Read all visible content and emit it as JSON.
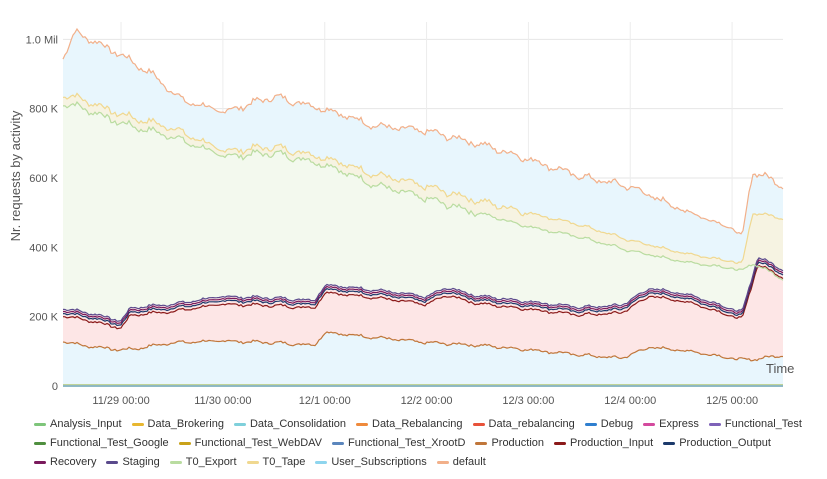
{
  "chart_data": {
    "type": "area",
    "ylabel": "Nr. requests by activity",
    "xlabel": "Time",
    "x_ticks": [
      "11/29 00:00",
      "11/30 00:00",
      "12/1 00:00",
      "12/2 00:00",
      "12/3 00:00",
      "12/4 00:00",
      "12/5 00:00"
    ],
    "y_ticks": [
      "0",
      "200 K",
      "400 K",
      "600 K",
      "800 K",
      "1.0 Mil"
    ],
    "ylim": [
      0,
      1050000
    ],
    "xlim_days": [
      -0.57,
      6.5
    ],
    "grid": true,
    "legend_position": "bottom",
    "series": [
      {
        "name": "Analysis_Input",
        "color": "#7ec57a",
        "points": [
          [
            -0.57,
            3000
          ],
          [
            6.5,
            3000
          ]
        ]
      },
      {
        "name": "Data_Brokering",
        "color": "#e8b730",
        "points": [
          [
            -0.57,
            2000
          ],
          [
            6.5,
            2000
          ]
        ]
      },
      {
        "name": "Data_Consolidation",
        "color": "#7fd0db",
        "points": [
          [
            -0.57,
            0
          ],
          [
            6.5,
            0
          ]
        ]
      },
      {
        "name": "Data_Rebalancing",
        "color": "#ef8a3c",
        "points": [
          [
            -0.57,
            0
          ],
          [
            6.5,
            0
          ]
        ]
      },
      {
        "name": "Data_rebalancing",
        "color": "#e8523a",
        "points": [
          [
            -0.57,
            0
          ],
          [
            6.5,
            0
          ]
        ]
      },
      {
        "name": "Debug",
        "color": "#2f7fcf",
        "points": [
          [
            -0.57,
            0
          ],
          [
            6.5,
            0
          ]
        ]
      },
      {
        "name": "Express",
        "color": "#d44a9e",
        "points": [
          [
            -0.57,
            0
          ],
          [
            6.5,
            0
          ]
        ]
      },
      {
        "name": "Functional_Test",
        "color": "#7e62b8",
        "points": [
          [
            -0.57,
            0
          ],
          [
            6.5,
            0
          ]
        ]
      },
      {
        "name": "Functional_Test_Google",
        "color": "#4f8f3f",
        "points": [
          [
            -0.57,
            0
          ],
          [
            6.5,
            0
          ]
        ]
      },
      {
        "name": "Functional_Test_WebDAV",
        "color": "#c9a21a",
        "points": [
          [
            -0.57,
            0
          ],
          [
            6.5,
            0
          ]
        ]
      },
      {
        "name": "Functional_Test_XrootD",
        "color": "#5b86bd",
        "points": [
          [
            -0.57,
            0
          ],
          [
            6.5,
            0
          ]
        ]
      },
      {
        "name": "Production",
        "color": "#c0763a",
        "points": [
          [
            -0.57,
            130000
          ],
          [
            -0.4,
            118000
          ],
          [
            0,
            104000
          ],
          [
            0.15,
            108000
          ],
          [
            0.5,
            125000
          ],
          [
            1,
            130000
          ],
          [
            1.5,
            125000
          ],
          [
            1.9,
            118000
          ],
          [
            2.0,
            155000
          ],
          [
            2.5,
            140000
          ],
          [
            3.0,
            125000
          ],
          [
            3.5,
            118000
          ],
          [
            4.0,
            105000
          ],
          [
            4.5,
            90000
          ],
          [
            4.9,
            80000
          ],
          [
            5.2,
            112000
          ],
          [
            5.6,
            100000
          ],
          [
            6.1,
            75000
          ],
          [
            6.3,
            80000
          ],
          [
            6.5,
            90000
          ]
        ]
      },
      {
        "name": "Production_Input",
        "color": "#8b1a1a",
        "points": [
          [
            -0.57,
            203000
          ],
          [
            -0.3,
            188000
          ],
          [
            0,
            167000
          ],
          [
            0.1,
            205000
          ],
          [
            0.5,
            215000
          ],
          [
            1,
            236000
          ],
          [
            1.5,
            232000
          ],
          [
            1.9,
            225000
          ],
          [
            2.0,
            270000
          ],
          [
            2.5,
            255000
          ],
          [
            3.0,
            235000
          ],
          [
            3.2,
            262000
          ],
          [
            3.5,
            238000
          ],
          [
            4.0,
            222000
          ],
          [
            4.5,
            205000
          ],
          [
            4.9,
            210000
          ],
          [
            5.2,
            260000
          ],
          [
            5.6,
            240000
          ],
          [
            6.1,
            192000
          ],
          [
            6.25,
            350000
          ],
          [
            6.5,
            315000
          ]
        ]
      },
      {
        "name": "Production_Output",
        "color": "#1c3a6b",
        "points": [
          [
            -0.57,
            212000
          ],
          [
            -0.3,
            198000
          ],
          [
            0,
            176000
          ],
          [
            0.1,
            214000
          ],
          [
            0.5,
            224000
          ],
          [
            1,
            246000
          ],
          [
            1.5,
            242000
          ],
          [
            1.9,
            235000
          ],
          [
            2.0,
            280000
          ],
          [
            2.5,
            265000
          ],
          [
            3.0,
            245000
          ],
          [
            3.2,
            272000
          ],
          [
            3.5,
            248000
          ],
          [
            4.0,
            232000
          ],
          [
            4.5,
            215000
          ],
          [
            4.9,
            220000
          ],
          [
            5.2,
            270000
          ],
          [
            5.6,
            250000
          ],
          [
            6.1,
            200000
          ],
          [
            6.25,
            360000
          ],
          [
            6.5,
            325000
          ]
        ]
      },
      {
        "name": "Recovery",
        "color": "#7a1a5c",
        "points": [
          [
            -0.57,
            218000
          ],
          [
            -0.3,
            204000
          ],
          [
            0,
            182000
          ],
          [
            0.1,
            220000
          ],
          [
            0.5,
            230000
          ],
          [
            1,
            252000
          ],
          [
            1.5,
            248000
          ],
          [
            1.9,
            241000
          ],
          [
            2.0,
            286000
          ],
          [
            2.5,
            271000
          ],
          [
            3.0,
            251000
          ],
          [
            3.2,
            278000
          ],
          [
            3.5,
            254000
          ],
          [
            4.0,
            238000
          ],
          [
            4.5,
            221000
          ],
          [
            4.9,
            226000
          ],
          [
            5.2,
            276000
          ],
          [
            5.6,
            256000
          ],
          [
            6.1,
            206000
          ],
          [
            6.25,
            366000
          ],
          [
            6.5,
            331000
          ]
        ]
      },
      {
        "name": "Staging",
        "color": "#5a4a8c",
        "points": [
          [
            -0.57,
            224000
          ],
          [
            -0.3,
            210000
          ],
          [
            0,
            188000
          ],
          [
            0.1,
            226000
          ],
          [
            0.5,
            236000
          ],
          [
            1,
            258000
          ],
          [
            1.5,
            254000
          ],
          [
            1.9,
            247000
          ],
          [
            2.0,
            292000
          ],
          [
            2.5,
            277000
          ],
          [
            3.0,
            257000
          ],
          [
            3.2,
            284000
          ],
          [
            3.5,
            260000
          ],
          [
            4.0,
            244000
          ],
          [
            4.5,
            227000
          ],
          [
            4.9,
            232000
          ],
          [
            5.2,
            282000
          ],
          [
            5.6,
            262000
          ],
          [
            6.1,
            212000
          ],
          [
            6.25,
            372000
          ],
          [
            6.5,
            337000
          ]
        ]
      },
      {
        "name": "T0_Export",
        "color": "#b9dca0",
        "points": [
          [
            -0.57,
            815000
          ],
          [
            -0.4,
            805000
          ],
          [
            0,
            758000
          ],
          [
            0.5,
            720000
          ],
          [
            1,
            663000
          ],
          [
            1.5,
            672000
          ],
          [
            2.0,
            640000
          ],
          [
            2.5,
            580000
          ],
          [
            3.0,
            540000
          ],
          [
            3.5,
            500000
          ],
          [
            4.0,
            460000
          ],
          [
            4.5,
            430000
          ],
          [
            5.0,
            390000
          ],
          [
            5.5,
            360000
          ],
          [
            6.0,
            340000
          ],
          [
            6.1,
            330000
          ],
          [
            6.2,
            355000
          ],
          [
            6.5,
            310000
          ]
        ]
      },
      {
        "name": "T0_Tape",
        "color": "#f0d890",
        "points": [
          [
            -0.57,
            840000
          ],
          [
            -0.4,
            830000
          ],
          [
            0,
            783000
          ],
          [
            0.5,
            745000
          ],
          [
            1,
            678000
          ],
          [
            1.5,
            690000
          ],
          [
            2.0,
            660000
          ],
          [
            2.5,
            610000
          ],
          [
            3.0,
            575000
          ],
          [
            3.5,
            535000
          ],
          [
            4.0,
            500000
          ],
          [
            4.5,
            465000
          ],
          [
            5.0,
            420000
          ],
          [
            5.5,
            385000
          ],
          [
            6.0,
            360000
          ],
          [
            6.1,
            350000
          ],
          [
            6.2,
            500000
          ],
          [
            6.5,
            485000
          ]
        ]
      },
      {
        "name": "User_Subscriptions",
        "color": "#8ed5ee",
        "points": [
          [
            -0.57,
            0
          ],
          [
            6.5,
            0
          ]
        ]
      },
      {
        "name": "default",
        "color": "#f2b08a",
        "points": [
          [
            -0.57,
            950000
          ],
          [
            -0.45,
            1020000
          ],
          [
            -0.3,
            1000000
          ],
          [
            0,
            955000
          ],
          [
            0.3,
            900000
          ],
          [
            0.6,
            825000
          ],
          [
            1.0,
            790000
          ],
          [
            1.5,
            835000
          ],
          [
            2.0,
            800000
          ],
          [
            2.5,
            750000
          ],
          [
            3.0,
            735000
          ],
          [
            3.5,
            700000
          ],
          [
            4.0,
            655000
          ],
          [
            4.5,
            605000
          ],
          [
            5.0,
            575000
          ],
          [
            5.5,
            510000
          ],
          [
            6.0,
            455000
          ],
          [
            6.1,
            430000
          ],
          [
            6.2,
            620000
          ],
          [
            6.5,
            580000
          ]
        ]
      }
    ]
  }
}
